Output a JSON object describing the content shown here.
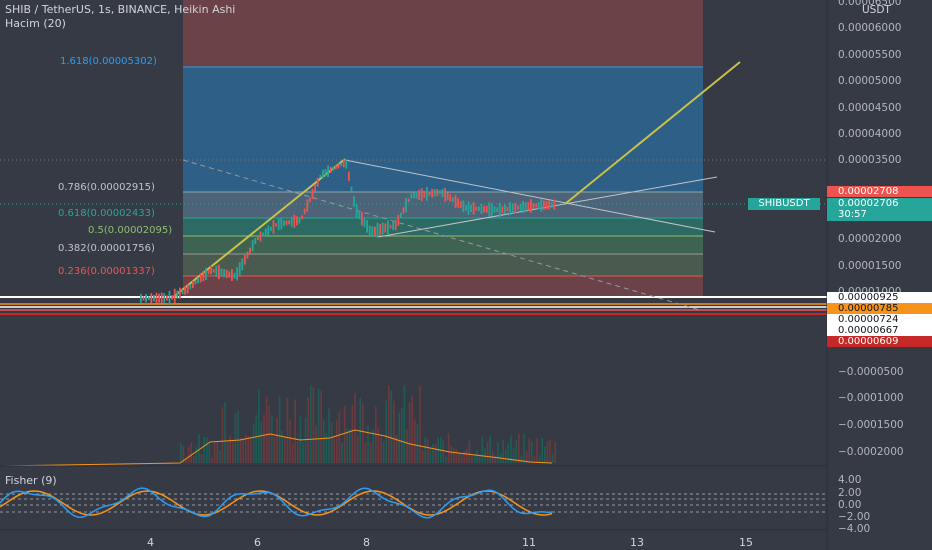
{
  "header": {
    "symbol_line": "SHIB / TetherUS, 1s, BINANCE, Heikin Ashi",
    "volume_line": "Hacim (20)",
    "fisher_line": "Fisher (9)"
  },
  "fib_levels": [
    {
      "label": "1.618(0.00005302)",
      "color": "#2a9df4"
    },
    {
      "label": "0.786(0.00002915)",
      "color": "#c0c3cc"
    },
    {
      "label": "0.618(0.00002433)",
      "color": "#26a69a"
    },
    {
      "label": "0.5(0.00002095)",
      "color": "#8fbf6f"
    },
    {
      "label": "0.382(0.00001756)",
      "color": "#c0c3cc"
    },
    {
      "label": "0.236(0.00001337)",
      "color": "#ef5350"
    }
  ],
  "price_axis": {
    "currency": "USDT",
    "labels": [
      "0.00006500",
      "0.00006000",
      "0.00005500",
      "0.00005000",
      "0.00004500",
      "0.00004000",
      "0.00003500",
      "0.00003000",
      "0.00002500",
      "0.00002000",
      "0.00001500",
      "0.00001000"
    ],
    "volume_labels": [
      "−0.0000500",
      "−0.0001000",
      "−0.0001500",
      "−0.0002000"
    ],
    "osc_labels": [
      "4.00",
      "2.00",
      "0.00",
      "−2.00",
      "−4.00"
    ]
  },
  "tags": {
    "top_price": "0.00002708",
    "symbol": "SHIBUSDT",
    "current_price": "0.00002706",
    "countdown": "30:57",
    "levels": [
      "0.00000925",
      "0.00000785",
      "0.00000724",
      "0.00000667",
      "0.00000609"
    ]
  },
  "time_axis": [
    "4",
    "6",
    "8",
    "11",
    "13",
    "15"
  ],
  "colors": {
    "up": "#26a69a",
    "down": "#ef5350",
    "trend": "#c8c24a",
    "bg": "#363a45"
  }
}
